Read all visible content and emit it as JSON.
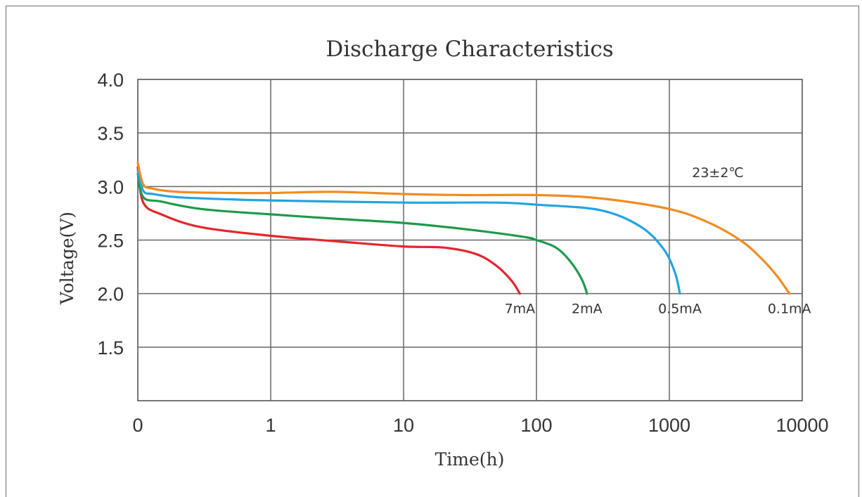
{
  "chart_data": {
    "type": "line",
    "title": "Discharge Characteristics",
    "xlabel": "Time(h)",
    "ylabel": "Voltage(V)",
    "x_scale": "log",
    "x_ticks": [
      "0",
      "1",
      "10",
      "100",
      "1000",
      "10000"
    ],
    "y_ticks": [
      "4.0",
      "3.5",
      "3.0",
      "2.5",
      "2.0",
      "1.5"
    ],
    "ylim": [
      1.0,
      4.0
    ],
    "grid": true,
    "annotation": "23±2℃",
    "colors": {
      "7mA": "#e2262c",
      "2mA": "#1e9a4a",
      "0.5mA": "#23a4e0",
      "0.1mA": "#ef8c22"
    },
    "series": [
      {
        "name": "7mA",
        "color": "#e2262c",
        "x": [
          0.1,
          0.11,
          0.15,
          0.3,
          1,
          3,
          10,
          20,
          35,
          50,
          65,
          75
        ],
        "y": [
          3.18,
          2.85,
          2.74,
          2.62,
          2.54,
          2.49,
          2.44,
          2.43,
          2.37,
          2.26,
          2.12,
          2.0
        ]
      },
      {
        "name": "2mA",
        "color": "#1e9a4a",
        "x": [
          0.1,
          0.11,
          0.15,
          0.3,
          1,
          3,
          10,
          30,
          80,
          100,
          140,
          180,
          220,
          240
        ],
        "y": [
          3.12,
          2.9,
          2.86,
          2.79,
          2.74,
          2.7,
          2.66,
          2.6,
          2.53,
          2.5,
          2.43,
          2.3,
          2.13,
          2.0
        ]
      },
      {
        "name": "0.5mA",
        "color": "#23a4e0",
        "x": [
          0.1,
          0.11,
          0.13,
          0.2,
          0.5,
          1,
          10,
          50,
          100,
          300,
          600,
          900,
          1100,
          1200
        ],
        "y": [
          3.15,
          2.96,
          2.93,
          2.9,
          2.88,
          2.87,
          2.85,
          2.85,
          2.83,
          2.78,
          2.63,
          2.42,
          2.2,
          2.0
        ]
      },
      {
        "name": "0.1mA",
        "color": "#ef8c22",
        "x": [
          0.1,
          0.11,
          0.13,
          0.2,
          0.5,
          1,
          3,
          10,
          30,
          100,
          300,
          1000,
          2000,
          3500,
          5000,
          6500,
          8000
        ],
        "y": [
          3.22,
          3.02,
          2.98,
          2.95,
          2.94,
          2.94,
          2.95,
          2.93,
          2.92,
          2.92,
          2.89,
          2.79,
          2.66,
          2.49,
          2.32,
          2.16,
          2.0
        ]
      }
    ]
  }
}
